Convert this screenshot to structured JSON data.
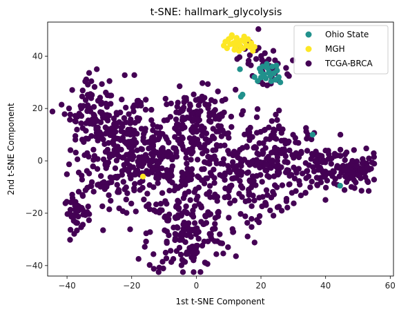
{
  "chart_data": {
    "type": "scatter",
    "title": "t-SNE: hallmark_glycolysis",
    "xlabel": "1st t-SNE Component",
    "ylabel": "2nd t-SNE Component",
    "xlim": [
      -46,
      61
    ],
    "ylim": [
      -44,
      53
    ],
    "xticks": [
      -40,
      -20,
      0,
      20,
      40,
      60
    ],
    "yticks": [
      -40,
      -20,
      0,
      20,
      40
    ],
    "tick_labels_x": [
      "−40",
      "−20",
      "0",
      "20",
      "40",
      "60"
    ],
    "tick_labels_y": [
      "−40",
      "−20",
      "0",
      "20",
      "40"
    ],
    "grid": false,
    "legend_position": "top-right",
    "series": [
      {
        "name": "Ohio State",
        "color": "#21918c",
        "points": [
          [
            13.5,
            35.0
          ],
          [
            13.8,
            24.5
          ],
          [
            14.3,
            25.3
          ],
          [
            18.0,
            32.0
          ],
          [
            19.0,
            30.5
          ],
          [
            20.0,
            34.0
          ],
          [
            20.5,
            36.0
          ],
          [
            21.0,
            33.0
          ],
          [
            21.5,
            31.5
          ],
          [
            22.0,
            35.5
          ],
          [
            22.5,
            34.0
          ],
          [
            23.0,
            32.5
          ],
          [
            23.5,
            36.0
          ],
          [
            24.0,
            33.5
          ],
          [
            24.5,
            31.0
          ],
          [
            25.0,
            34.5
          ],
          [
            25.5,
            32.0
          ],
          [
            26.0,
            30.0
          ],
          [
            20.0,
            31.8
          ],
          [
            21.8,
            37.0
          ],
          [
            23.2,
            30.4
          ],
          [
            24.8,
            36.4
          ],
          [
            19.6,
            35.2
          ],
          [
            22.7,
            33.3
          ],
          [
            20.7,
            32.7
          ],
          [
            36.0,
            10.0
          ],
          [
            44.5,
            -9.5
          ]
        ]
      },
      {
        "name": "MGH",
        "color": "#fde725",
        "points": [
          [
            8.5,
            44.0
          ],
          [
            9.0,
            45.5
          ],
          [
            9.5,
            43.0
          ],
          [
            10.0,
            46.5
          ],
          [
            10.5,
            44.5
          ],
          [
            11.0,
            48.0
          ],
          [
            11.5,
            45.0
          ],
          [
            12.0,
            43.5
          ],
          [
            12.5,
            47.0
          ],
          [
            13.0,
            45.0
          ],
          [
            13.5,
            44.0
          ],
          [
            14.0,
            46.0
          ],
          [
            14.5,
            43.0
          ],
          [
            15.0,
            45.5
          ],
          [
            15.5,
            44.0
          ],
          [
            16.0,
            46.5
          ],
          [
            16.5,
            43.5
          ],
          [
            17.0,
            45.0
          ],
          [
            17.5,
            42.0
          ],
          [
            18.0,
            43.5
          ],
          [
            11.8,
            42.4
          ],
          [
            13.2,
            42.0
          ],
          [
            10.8,
            47.2
          ],
          [
            12.4,
            45.9
          ],
          [
            14.8,
            47.5
          ],
          [
            -16.5,
            -6.0
          ]
        ]
      },
      {
        "name": "TCGA-BRCA",
        "color": "#440154",
        "clusters": [
          {
            "cx": -27,
            "cy": 5,
            "sx": 6,
            "sy": 12,
            "n": 200
          },
          {
            "cx": -33,
            "cy": 20,
            "sx": 3,
            "sy": 6,
            "n": 60
          },
          {
            "cx": -37,
            "cy": -20,
            "sx": 2,
            "sy": 3,
            "n": 40
          },
          {
            "cx": -17,
            "cy": 0,
            "sx": 5,
            "sy": 10,
            "n": 120
          },
          {
            "cx": 0,
            "cy": 15,
            "sx": 6,
            "sy": 6,
            "n": 160
          },
          {
            "cx": -3,
            "cy": -28,
            "sx": 6,
            "sy": 8,
            "n": 160
          },
          {
            "cx": -5,
            "cy": -5,
            "sx": 8,
            "sy": 8,
            "n": 150
          },
          {
            "cx": 15,
            "cy": -5,
            "sx": 6,
            "sy": 10,
            "n": 130
          },
          {
            "cx": 27,
            "cy": 0,
            "sx": 6,
            "sy": 8,
            "n": 150
          },
          {
            "cx": 40,
            "cy": -3,
            "sx": 4,
            "sy": 5,
            "n": 70
          },
          {
            "cx": 50,
            "cy": -4,
            "sx": 3,
            "sy": 3,
            "n": 80
          },
          {
            "cx": 18,
            "cy": 40,
            "sx": 4,
            "sy": 4,
            "n": 25
          },
          {
            "cx": 23,
            "cy": 33,
            "sx": 2.5,
            "sy": 3,
            "n": 25
          }
        ]
      }
    ]
  }
}
